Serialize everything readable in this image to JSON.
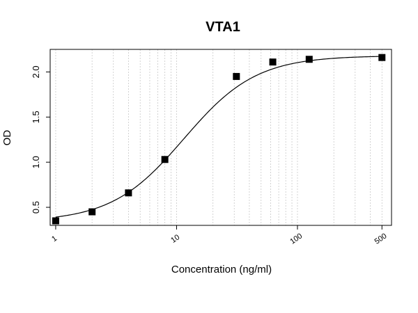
{
  "chart_data": {
    "type": "scatter",
    "title": "VTA1",
    "xlabel": "Concentration (ng/ml)",
    "ylabel": "OD",
    "x_scale": "log",
    "xlim": [
      0.9,
      600
    ],
    "ylim": [
      0.3,
      2.25
    ],
    "x_ticks": [
      {
        "value": 1,
        "label": "1"
      },
      {
        "value": 10,
        "label": "10"
      },
      {
        "value": 100,
        "label": "100"
      },
      {
        "value": 500,
        "label": "500"
      }
    ],
    "y_ticks": [
      {
        "value": 0.5,
        "label": "0.5"
      },
      {
        "value": 1.0,
        "label": "1.0"
      },
      {
        "value": 1.5,
        "label": "1.5"
      },
      {
        "value": 2.0,
        "label": "2.0"
      }
    ],
    "grid": "vertical dotted at log minor ticks",
    "points": [
      {
        "x": 1,
        "y": 0.35
      },
      {
        "x": 2,
        "y": 0.45
      },
      {
        "x": 4,
        "y": 0.66
      },
      {
        "x": 8,
        "y": 1.03
      },
      {
        "x": 31.25,
        "y": 1.95
      },
      {
        "x": 62.5,
        "y": 2.11
      },
      {
        "x": 125,
        "y": 2.14
      },
      {
        "x": 500,
        "y": 2.16
      }
    ],
    "fit": {
      "model": "4PL",
      "bottom": 0.34,
      "top": 2.18,
      "ec50": 11.5,
      "hill": 1.45
    },
    "marker_color": "#000000",
    "line_color": "#000000",
    "grid_color": "#c8c8c8"
  }
}
